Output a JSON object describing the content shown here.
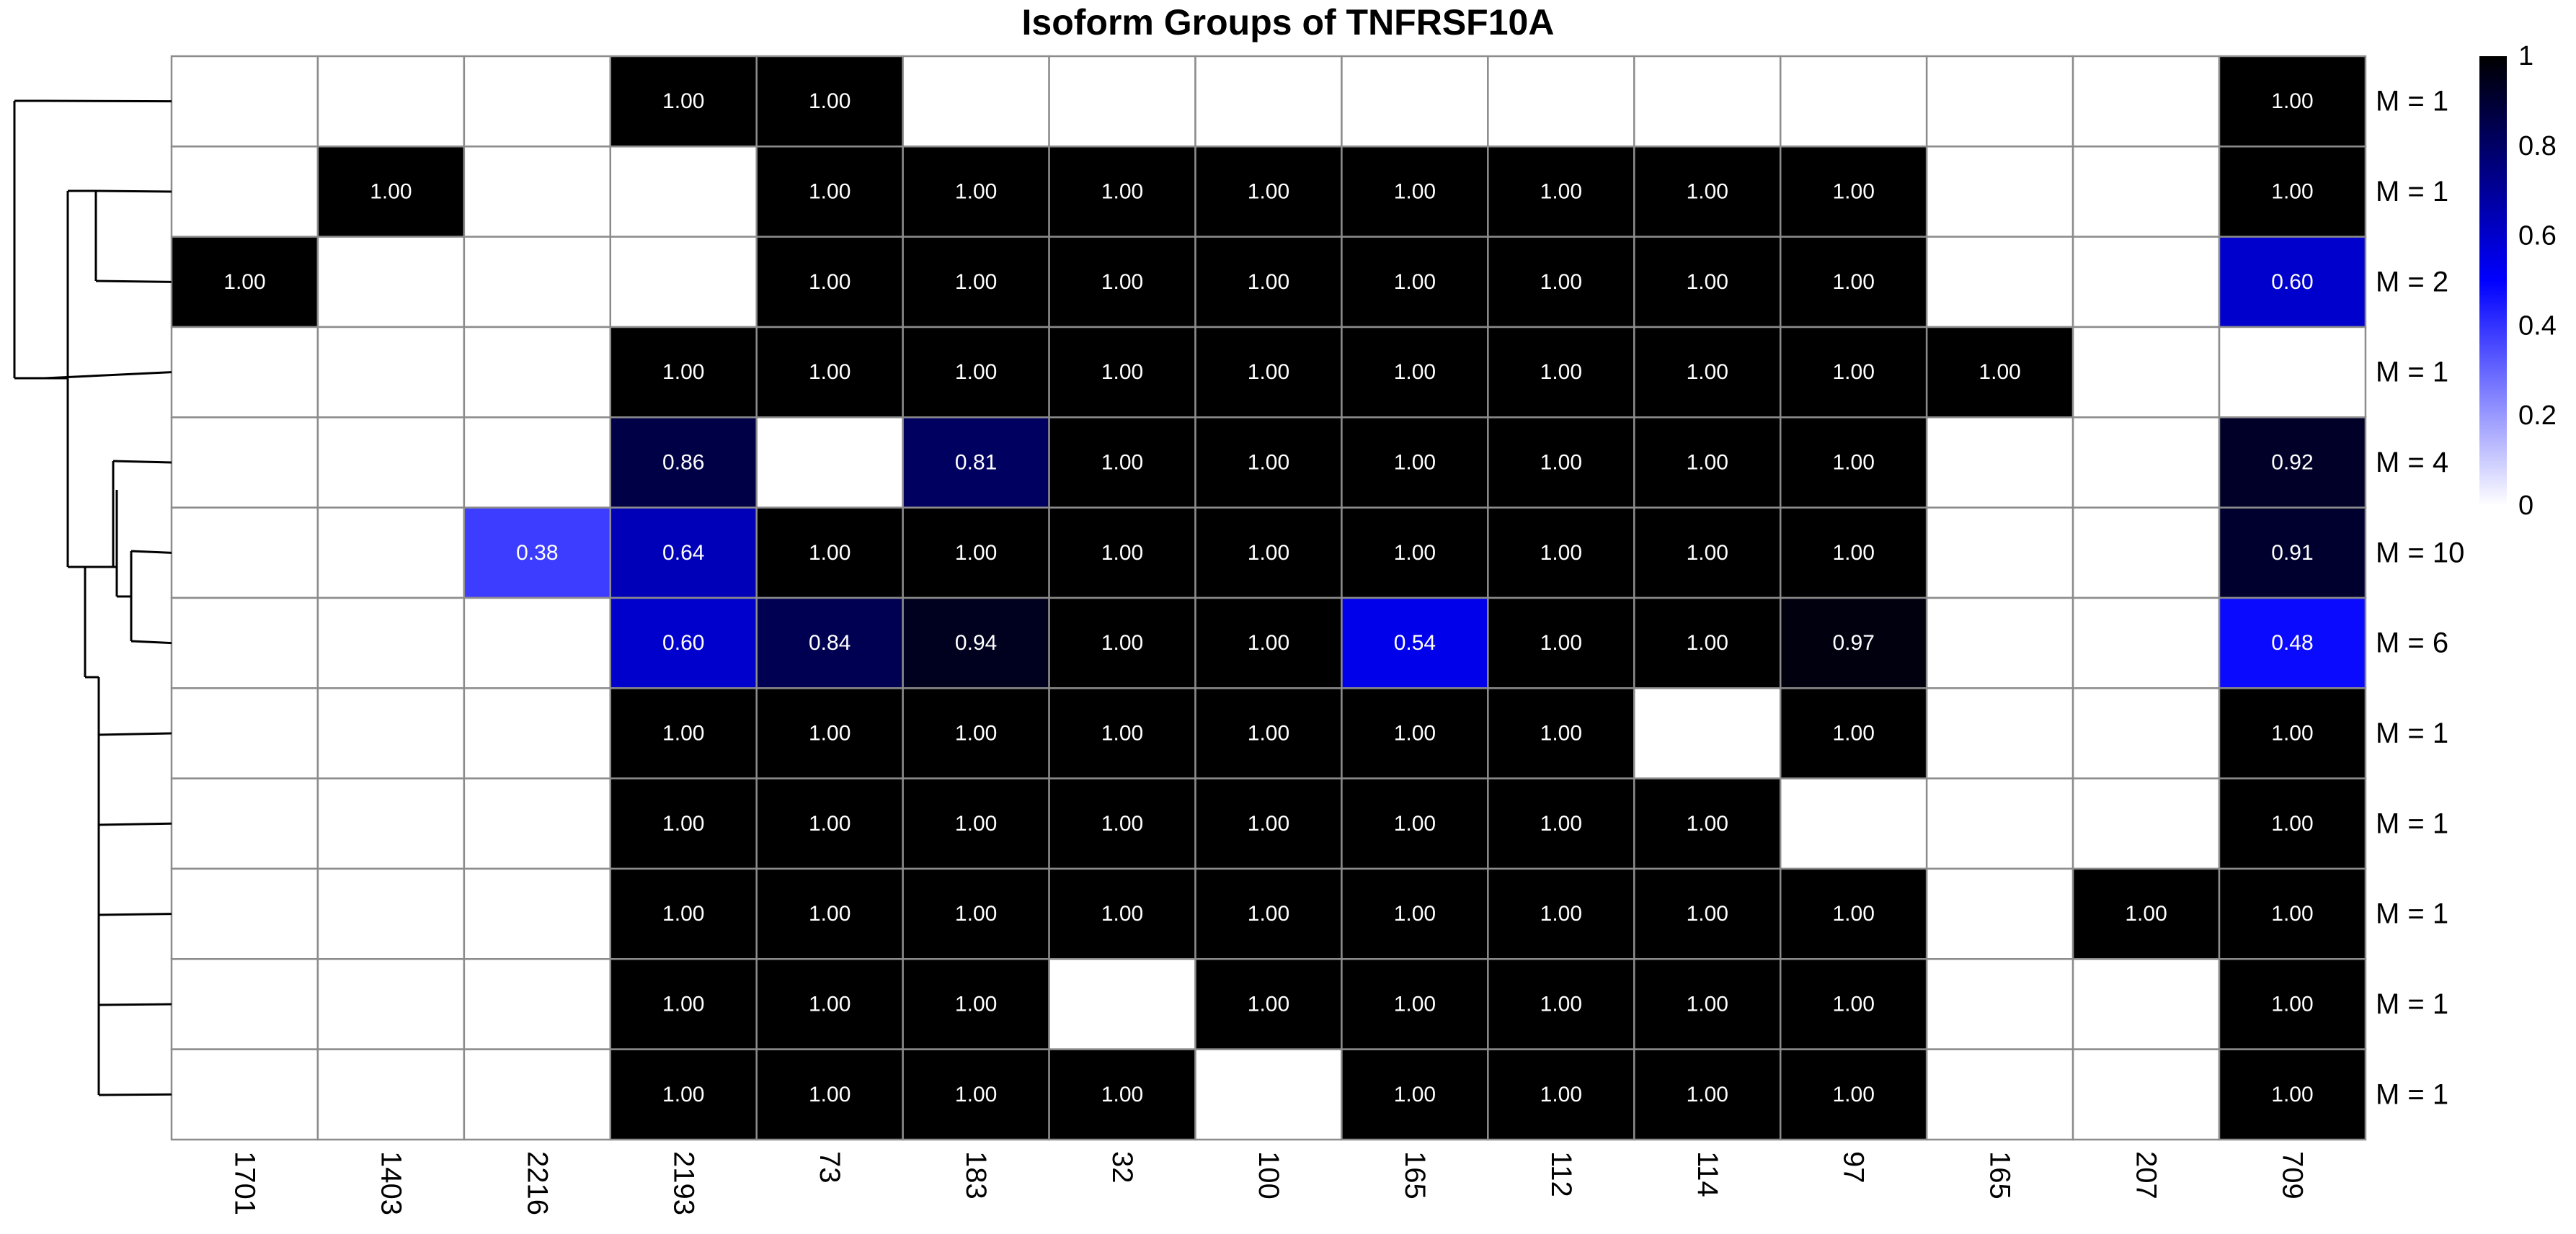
{
  "chart_data": {
    "type": "heatmap",
    "title": "Isoform Groups of TNFRSF10A",
    "columns": [
      "1701",
      "1403",
      "2216",
      "2193",
      "73",
      "183",
      "32",
      "100",
      "165",
      "112",
      "114",
      "97",
      "165",
      "207",
      "709"
    ],
    "rows": [
      "M = 1",
      "M = 1",
      "M = 2",
      "M = 1",
      "M = 4",
      "M = 10",
      "M = 6",
      "M = 1",
      "M = 1",
      "M = 1",
      "M = 1",
      "M = 1"
    ],
    "values": [
      [
        null,
        null,
        null,
        1.0,
        1.0,
        null,
        null,
        null,
        null,
        null,
        null,
        null,
        null,
        null,
        1.0
      ],
      [
        null,
        1.0,
        null,
        null,
        1.0,
        1.0,
        1.0,
        1.0,
        1.0,
        1.0,
        1.0,
        1.0,
        null,
        null,
        1.0
      ],
      [
        1.0,
        null,
        null,
        null,
        1.0,
        1.0,
        1.0,
        1.0,
        1.0,
        1.0,
        1.0,
        1.0,
        null,
        null,
        0.6
      ],
      [
        null,
        null,
        null,
        1.0,
        1.0,
        1.0,
        1.0,
        1.0,
        1.0,
        1.0,
        1.0,
        1.0,
        1.0,
        null,
        null
      ],
      [
        null,
        null,
        null,
        0.86,
        null,
        0.81,
        1.0,
        1.0,
        1.0,
        1.0,
        1.0,
        1.0,
        null,
        null,
        0.92
      ],
      [
        null,
        null,
        0.38,
        0.64,
        1.0,
        1.0,
        1.0,
        1.0,
        1.0,
        1.0,
        1.0,
        1.0,
        null,
        null,
        0.91
      ],
      [
        null,
        null,
        null,
        0.6,
        0.84,
        0.94,
        1.0,
        1.0,
        0.54,
        1.0,
        1.0,
        0.97,
        null,
        null,
        0.48
      ],
      [
        null,
        null,
        null,
        1.0,
        1.0,
        1.0,
        1.0,
        1.0,
        1.0,
        1.0,
        null,
        1.0,
        null,
        null,
        1.0
      ],
      [
        null,
        null,
        null,
        1.0,
        1.0,
        1.0,
        1.0,
        1.0,
        1.0,
        1.0,
        1.0,
        null,
        null,
        null,
        1.0
      ],
      [
        null,
        null,
        null,
        1.0,
        1.0,
        1.0,
        1.0,
        1.0,
        1.0,
        1.0,
        1.0,
        1.0,
        null,
        1.0,
        1.0
      ],
      [
        null,
        null,
        null,
        1.0,
        1.0,
        1.0,
        null,
        1.0,
        1.0,
        1.0,
        1.0,
        1.0,
        null,
        null,
        1.0
      ],
      [
        null,
        null,
        null,
        1.0,
        1.0,
        1.0,
        1.0,
        null,
        1.0,
        1.0,
        1.0,
        1.0,
        null,
        null,
        1.0
      ]
    ],
    "value_range": [
      0,
      1
    ],
    "colorscale": [
      "#ffffff",
      "#0000ff",
      "#000000"
    ],
    "colorbar_ticks": [
      "0",
      "0.2",
      "0.4",
      "0.6",
      "0.8",
      "1"
    ],
    "row_dendrogram": true,
    "grid": true,
    "legend_position": "right"
  }
}
